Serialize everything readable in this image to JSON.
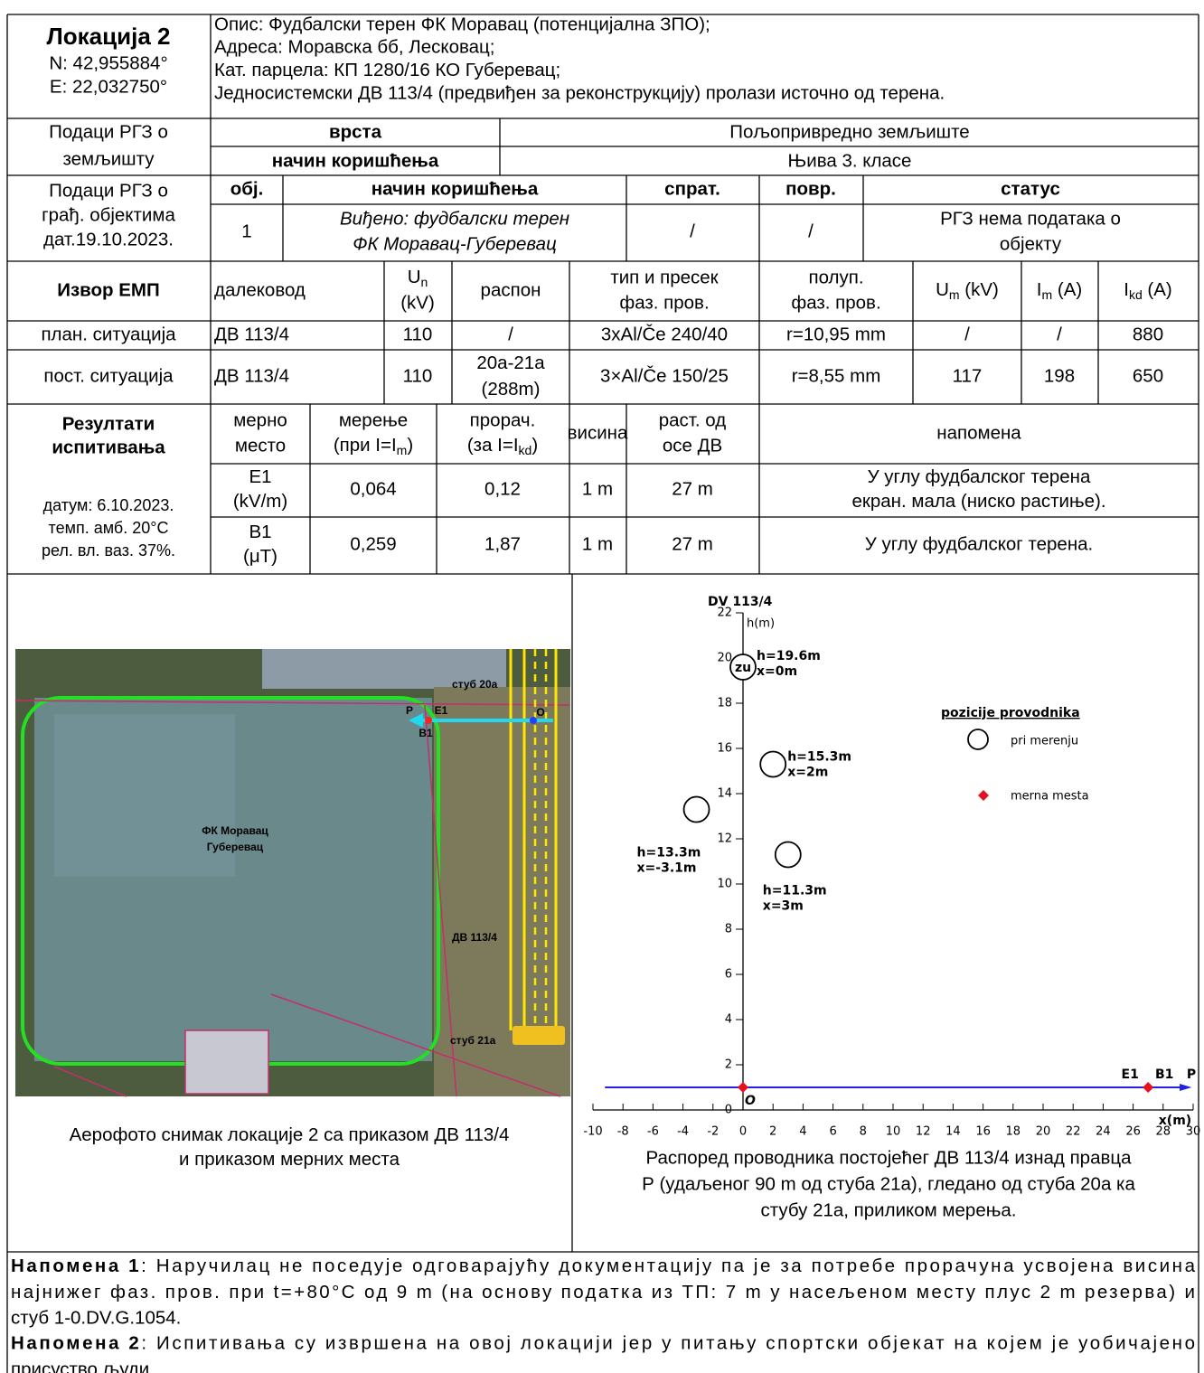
{
  "location": {
    "title": "Локација 2",
    "coords": [
      "N: 42,955884°",
      "E: 22,032750°"
    ],
    "description": [
      "Опис: Фудбалски терен ФК Моравац (потенцијална ЗПО);",
      "Адреса: Моравска бб, Лесковац;",
      "Кат. парцела: КП 1280/16 КО Губеревац;",
      "Једносистемски ДВ 113/4 (предвиђен за реконструкцију) пролази источно од терена."
    ]
  },
  "land": {
    "label": [
      "Подаци РГЗ о",
      "земљишту"
    ],
    "rows": [
      [
        "врста",
        "Пољопривредно земљиште"
      ],
      [
        "начин коришћења",
        "Њива 3. класе"
      ]
    ]
  },
  "buildings": {
    "label": [
      "Подаци РГЗ о",
      "грађ. објектима",
      "дат.19.10.2023."
    ],
    "header": [
      "обј.",
      "начин коришћења",
      "спрат.",
      "повр.",
      "статус"
    ],
    "row": [
      [
        "1"
      ],
      [
        "Виђено: фудбалски терен",
        "ФК Моравац-Губеревац"
      ],
      [
        "/"
      ],
      [
        "/"
      ],
      [
        "РГЗ нема података о",
        "објекту"
      ]
    ]
  },
  "source": {
    "label": "Извор ЕМП",
    "header": [
      [
        "далековод"
      ],
      [
        {
          "text": "U",
          "sub": "n"
        },
        "(kV)"
      ],
      [
        "распон"
      ],
      [
        "тип и пресек",
        "фаз. пров."
      ],
      [
        "полуп.",
        "фаз. пров."
      ],
      [
        {
          "text": "U",
          "sub": "m",
          "after": " (kV)"
        }
      ],
      [
        {
          "text": "I",
          "sub": "m",
          "after": " (A)"
        }
      ],
      [
        {
          "text": "I",
          "sub": "kd",
          "after": " (A)"
        }
      ]
    ],
    "rows": [
      [
        [
          "план. ситуација"
        ],
        [
          "ДВ 113/4"
        ],
        [
          "110"
        ],
        [
          "/"
        ],
        [
          "3xAl/Če 240/40"
        ],
        [
          "r=10,95 mm"
        ],
        [
          "/"
        ],
        [
          "/"
        ],
        [
          "880"
        ]
      ],
      [
        [
          "пост. ситуација"
        ],
        [
          "ДВ 113/4"
        ],
        [
          "110"
        ],
        [
          "20а-21а",
          "(288m)"
        ],
        [
          "3×Al/Če 150/25"
        ],
        [
          "r=8,55 mm"
        ],
        [
          "117"
        ],
        [
          "198"
        ],
        [
          "650"
        ]
      ]
    ]
  },
  "results": {
    "label": [
      "Резултати",
      "испитивања"
    ],
    "conditions": [
      "датум: 6.10.2023.",
      "темп. амб. 20°C",
      "рел. вл. ваз. 37%."
    ],
    "header": [
      [
        "мерно",
        "место"
      ],
      [
        "мерење",
        {
          "text": "(при I=I",
          "sub": "m",
          "after": ")"
        }
      ],
      [
        "прорач.",
        {
          "text": "(за I=I",
          "sub": "kd",
          "after": ")"
        }
      ],
      [
        "висина"
      ],
      [
        "раст. од",
        "осе ДВ"
      ],
      [
        "напомена"
      ]
    ],
    "rows": [
      [
        [
          "E1",
          "(kV/m)"
        ],
        [
          "0,064"
        ],
        [
          "0,12"
        ],
        [
          "1 m"
        ],
        [
          "27 m"
        ],
        [
          "У углу фудбалског терена",
          "екран. мала (ниско растиње)."
        ]
      ],
      [
        [
          "B1",
          "(μT)"
        ],
        [
          "0,259"
        ],
        [
          "1,87"
        ],
        [
          "1 m"
        ],
        [
          "27 m"
        ],
        [
          "У углу фудбалског терена."
        ]
      ]
    ]
  },
  "photo": {
    "labels": {
      "pole_top": "стуб 20а",
      "line": "ДВ 113/4",
      "pole_bottom": "стуб 21а",
      "field": [
        "ФК Моравац",
        "Губеревац"
      ],
      "p": "P",
      "e1": "E1",
      "b1": "B1",
      "o": "O"
    },
    "caption": [
      "Аерофото снимак локације 2 са приказом ДВ 113/4",
      "и приказом мерних места"
    ]
  },
  "chart_data": {
    "type": "scatter",
    "title": "DV 113/4",
    "ylabel": "h(m)",
    "xlabel": "x(m)",
    "xlim": [
      -10,
      30
    ],
    "ylim": [
      0,
      22
    ],
    "xticks": [
      -10,
      -8,
      -6,
      -4,
      -2,
      0,
      2,
      4,
      6,
      8,
      10,
      12,
      14,
      16,
      18,
      20,
      22,
      24,
      26,
      28,
      30
    ],
    "yticks": [
      0,
      2,
      4,
      6,
      8,
      10,
      12,
      14,
      16,
      18,
      20,
      22
    ],
    "legend_title": "pozicije provodnika",
    "series": [
      {
        "name": "pri merenju",
        "marker": "circle",
        "color": "#000000",
        "x": [
          0,
          2,
          -3.1,
          3
        ],
        "values": [
          19.6,
          15.3,
          13.3,
          11.3
        ],
        "inner_labels": [
          "zu",
          null,
          null,
          null
        ],
        "point_labels": [
          [
            "h=19.6m",
            "x=0m"
          ],
          [
            "h=15.3m",
            "x=2m"
          ],
          [
            "h=13.3m",
            "x=-3.1m"
          ],
          [
            "h=11.3m",
            "x=3m"
          ]
        ]
      },
      {
        "name": "merna mesta",
        "marker": "diamond",
        "color": "#e8101a",
        "x": [
          0,
          27
        ],
        "values": [
          1,
          1
        ],
        "point_labels": [
          [
            "O"
          ],
          [
            "E1",
            "B1"
          ]
        ]
      }
    ],
    "reference_line": {
      "label": "P",
      "value": 1,
      "color": "#1e22e0"
    },
    "caption": [
      "Распоред проводника постојећег ДВ 113/4 изнад правца",
      "Р (удаљеног 90 m од стуба 21а), гледано од стуба 20а ка",
      "стубу 21а, приликом мерења."
    ]
  },
  "notes": [
    {
      "label": "Напомена 1",
      "lines": [
        ": Наручилац не поседује одговарајућу документацију па је за потребе прорачуна усвојена висина",
        "најнижег фаз. пров. при t=+80°C од 9 m (на основу податка из ТП: 7 m у насељеном месту плус 2 m резерва) и",
        "стуб 1-0.DV.G.1054."
      ]
    },
    {
      "label": "Напомена 2",
      "lines": [
        ": Испитивања су извршена на овој локацији јер у питању спортски објекат на којем је уобичајено",
        "присуство људи."
      ]
    }
  ]
}
